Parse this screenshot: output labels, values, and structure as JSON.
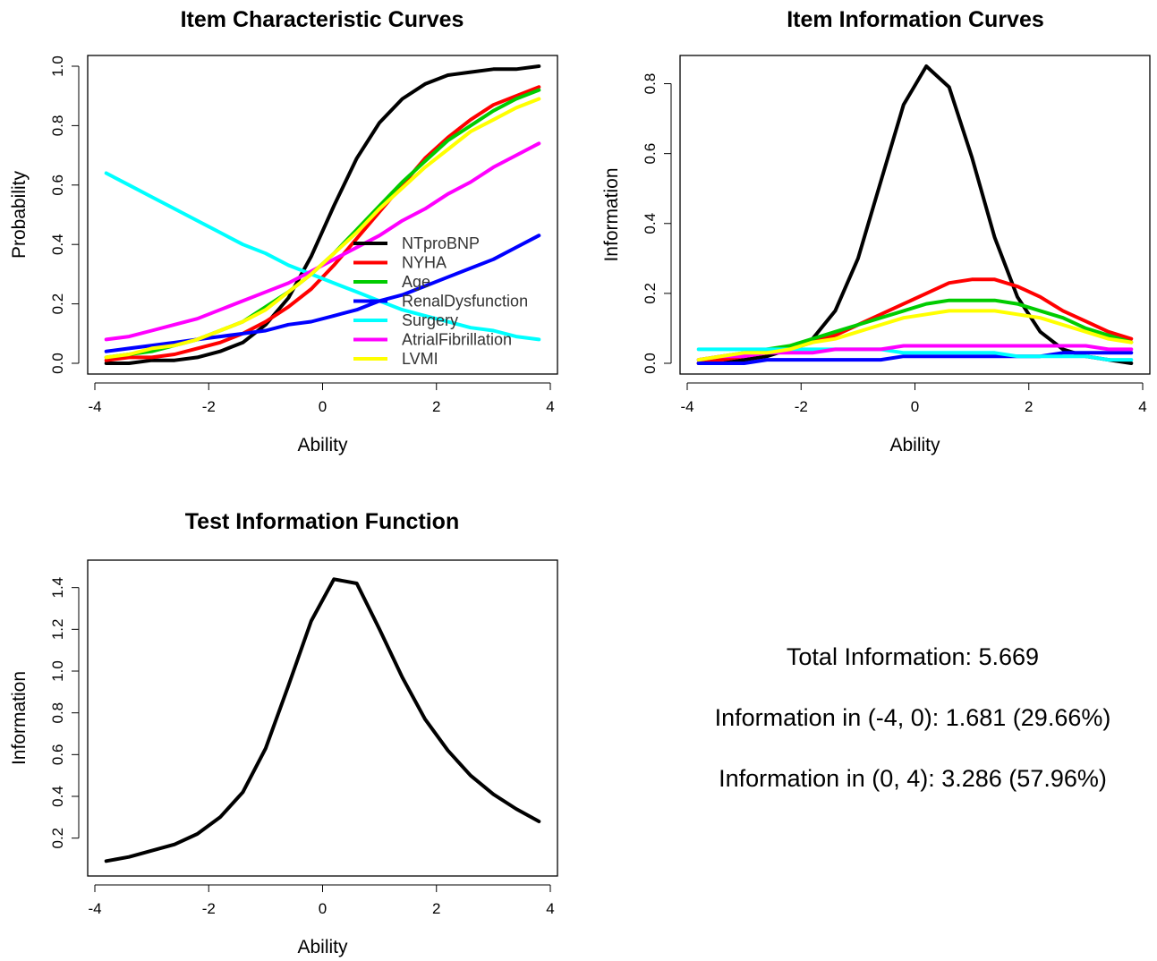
{
  "chart_data": [
    {
      "type": "line",
      "title": "Item Characteristic Curves",
      "xlabel": "Ability",
      "ylabel": "Probability",
      "xlim": [
        -4,
        4
      ],
      "ylim": [
        0,
        1
      ],
      "xticks": [
        -4,
        -2,
        0,
        2,
        4
      ],
      "yticks": [
        0.0,
        0.2,
        0.4,
        0.6,
        0.8,
        1.0
      ],
      "ytick_labels": [
        "0.0",
        "0.2",
        "0.4",
        "0.6",
        "0.8",
        "1.0"
      ],
      "legend": "inside",
      "x": [
        -3.8,
        -3.4,
        -3.0,
        -2.6,
        -2.2,
        -1.8,
        -1.4,
        -1.0,
        -0.6,
        -0.2,
        0.2,
        0.6,
        1.0,
        1.4,
        1.8,
        2.2,
        2.6,
        3.0,
        3.4,
        3.8
      ],
      "series": [
        {
          "name": "NTproBNP",
          "color": "#000000",
          "values": [
            0.0,
            0.0,
            0.01,
            0.01,
            0.02,
            0.04,
            0.07,
            0.13,
            0.22,
            0.36,
            0.53,
            0.69,
            0.81,
            0.89,
            0.94,
            0.97,
            0.98,
            0.99,
            0.99,
            1.0
          ]
        },
        {
          "name": "NYHA",
          "color": "#ff0000",
          "values": [
            0.01,
            0.02,
            0.02,
            0.03,
            0.05,
            0.07,
            0.1,
            0.14,
            0.19,
            0.25,
            0.33,
            0.42,
            0.51,
            0.6,
            0.69,
            0.76,
            0.82,
            0.87,
            0.9,
            0.93
          ]
        },
        {
          "name": "Age",
          "color": "#00cc00",
          "values": [
            0.02,
            0.03,
            0.04,
            0.06,
            0.08,
            0.11,
            0.14,
            0.19,
            0.24,
            0.3,
            0.37,
            0.45,
            0.53,
            0.61,
            0.68,
            0.75,
            0.8,
            0.85,
            0.89,
            0.92
          ]
        },
        {
          "name": "RenalDysfunction",
          "color": "#0000ff",
          "values": [
            0.04,
            0.05,
            0.06,
            0.07,
            0.08,
            0.09,
            0.1,
            0.11,
            0.13,
            0.14,
            0.16,
            0.18,
            0.21,
            0.23,
            0.26,
            0.29,
            0.32,
            0.35,
            0.39,
            0.43
          ]
        },
        {
          "name": "Surgery",
          "color": "#00ffff",
          "values": [
            0.64,
            0.6,
            0.56,
            0.52,
            0.48,
            0.44,
            0.4,
            0.37,
            0.33,
            0.3,
            0.27,
            0.24,
            0.21,
            0.18,
            0.16,
            0.14,
            0.12,
            0.11,
            0.09,
            0.08
          ]
        },
        {
          "name": "AtrialFibrillation",
          "color": "#ff00ff",
          "values": [
            0.08,
            0.09,
            0.11,
            0.13,
            0.15,
            0.18,
            0.21,
            0.24,
            0.27,
            0.31,
            0.35,
            0.39,
            0.43,
            0.48,
            0.52,
            0.57,
            0.61,
            0.66,
            0.7,
            0.74
          ]
        },
        {
          "name": "LVMI",
          "color": "#ffff00",
          "values": [
            0.02,
            0.03,
            0.05,
            0.06,
            0.08,
            0.11,
            0.14,
            0.18,
            0.24,
            0.3,
            0.37,
            0.44,
            0.52,
            0.59,
            0.66,
            0.72,
            0.78,
            0.82,
            0.86,
            0.89
          ]
        }
      ]
    },
    {
      "type": "line",
      "title": "Item Information Curves",
      "xlabel": "Ability",
      "ylabel": "Information",
      "xlim": [
        -4,
        4
      ],
      "ylim": [
        0,
        0.85
      ],
      "xticks": [
        -4,
        -2,
        0,
        2,
        4
      ],
      "yticks": [
        0.0,
        0.2,
        0.4,
        0.6,
        0.8
      ],
      "ytick_labels": [
        "0.0",
        "0.2",
        "0.4",
        "0.6",
        "0.8"
      ],
      "x": [
        -3.8,
        -3.4,
        -3.0,
        -2.6,
        -2.2,
        -1.8,
        -1.4,
        -1.0,
        -0.6,
        -0.2,
        0.2,
        0.6,
        1.0,
        1.4,
        1.8,
        2.2,
        2.6,
        3.0,
        3.4,
        3.8
      ],
      "series": [
        {
          "color": "#000000",
          "values": [
            0.0,
            0.0,
            0.01,
            0.02,
            0.04,
            0.07,
            0.15,
            0.3,
            0.52,
            0.74,
            0.85,
            0.79,
            0.59,
            0.36,
            0.19,
            0.09,
            0.04,
            0.02,
            0.01,
            0.0
          ]
        },
        {
          "color": "#ff0000",
          "values": [
            0.0,
            0.01,
            0.02,
            0.03,
            0.04,
            0.06,
            0.08,
            0.11,
            0.14,
            0.17,
            0.2,
            0.23,
            0.24,
            0.24,
            0.22,
            0.19,
            0.15,
            0.12,
            0.09,
            0.07
          ]
        },
        {
          "color": "#00cc00",
          "values": [
            0.01,
            0.02,
            0.03,
            0.04,
            0.05,
            0.07,
            0.09,
            0.11,
            0.13,
            0.15,
            0.17,
            0.18,
            0.18,
            0.18,
            0.17,
            0.15,
            0.13,
            0.1,
            0.08,
            0.06
          ]
        },
        {
          "color": "#0000ff",
          "values": [
            0.0,
            0.0,
            0.0,
            0.01,
            0.01,
            0.01,
            0.01,
            0.01,
            0.01,
            0.02,
            0.02,
            0.02,
            0.02,
            0.02,
            0.02,
            0.02,
            0.03,
            0.03,
            0.03,
            0.03
          ]
        },
        {
          "color": "#00ffff",
          "values": [
            0.04,
            0.04,
            0.04,
            0.04,
            0.04,
            0.04,
            0.04,
            0.04,
            0.04,
            0.03,
            0.03,
            0.03,
            0.03,
            0.03,
            0.02,
            0.02,
            0.02,
            0.02,
            0.01,
            0.01
          ]
        },
        {
          "color": "#ff00ff",
          "values": [
            0.01,
            0.02,
            0.02,
            0.03,
            0.03,
            0.03,
            0.04,
            0.04,
            0.04,
            0.05,
            0.05,
            0.05,
            0.05,
            0.05,
            0.05,
            0.05,
            0.05,
            0.05,
            0.04,
            0.04
          ]
        },
        {
          "color": "#ffff00",
          "values": [
            0.01,
            0.02,
            0.03,
            0.03,
            0.04,
            0.06,
            0.07,
            0.09,
            0.11,
            0.13,
            0.14,
            0.15,
            0.15,
            0.15,
            0.14,
            0.13,
            0.11,
            0.09,
            0.07,
            0.06
          ]
        }
      ]
    },
    {
      "type": "line",
      "title": "Test Information Function",
      "xlabel": "Ability",
      "ylabel": "Information",
      "xlim": [
        -4,
        4
      ],
      "ylim": [
        0.07,
        1.48
      ],
      "xticks": [
        -4,
        -2,
        0,
        2,
        4
      ],
      "yticks": [
        0.2,
        0.4,
        0.6,
        0.8,
        1.0,
        1.2,
        1.4
      ],
      "ytick_labels": [
        "0.2",
        "0.4",
        "0.6",
        "0.8",
        "1.0",
        "1.2",
        "1.4"
      ],
      "x": [
        -3.8,
        -3.4,
        -3.0,
        -2.6,
        -2.2,
        -1.8,
        -1.4,
        -1.0,
        -0.6,
        -0.2,
        0.2,
        0.6,
        1.0,
        1.4,
        1.8,
        2.2,
        2.6,
        3.0,
        3.4,
        3.8
      ],
      "series": [
        {
          "color": "#000000",
          "values": [
            0.09,
            0.11,
            0.14,
            0.17,
            0.22,
            0.3,
            0.42,
            0.63,
            0.93,
            1.24,
            1.44,
            1.42,
            1.2,
            0.97,
            0.77,
            0.62,
            0.5,
            0.41,
            0.34,
            0.28
          ]
        }
      ]
    }
  ],
  "summary": {
    "total": "Total Information: 5.669",
    "neg": "Information in (-4, 0): 1.681 (29.66%)",
    "pos": "Information in (0, 4): 3.286 (57.96%)"
  }
}
